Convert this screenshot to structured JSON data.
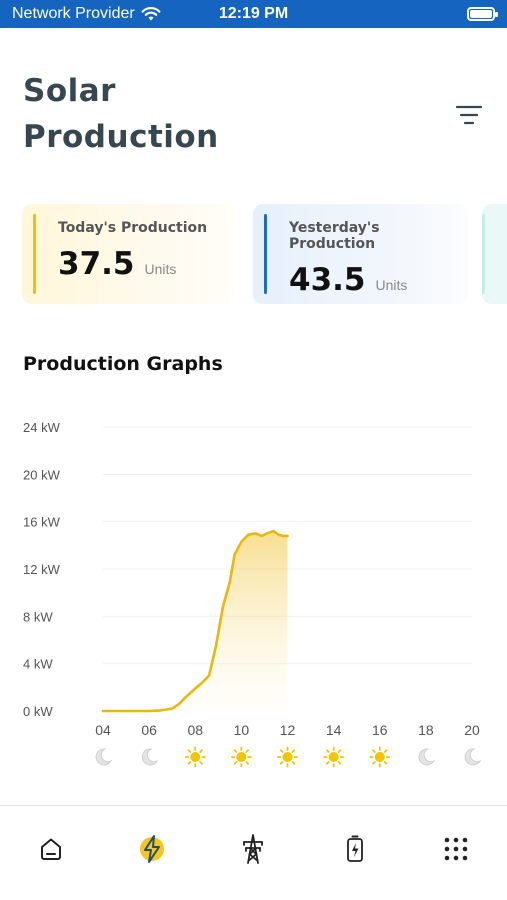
{
  "status_bar": {
    "carrier": "Network Provider",
    "time": "12:19 PM"
  },
  "header": {
    "title": "Solar Production"
  },
  "cards": [
    {
      "label": "Today's Production",
      "value": "37.5",
      "unit": "Units",
      "accent": "#f2c000"
    },
    {
      "label": "Yesterday's Production",
      "value": "43.5",
      "unit": "Units",
      "accent": "#1e6fb8"
    }
  ],
  "section": {
    "title": "Production Graphs"
  },
  "chart_data": {
    "type": "area",
    "y_tick_labels": [
      "0 kW",
      "4 kW",
      "8 kW",
      "12 kW",
      "16 kW",
      "20 kW",
      "24 kW"
    ],
    "x_tick_labels": [
      "04",
      "06",
      "08",
      "10",
      "12",
      "14",
      "16",
      "18",
      "20"
    ],
    "xlim": [
      4,
      20
    ],
    "ylim": [
      0,
      24
    ],
    "grid": true,
    "color": "#e8b80c",
    "x": [
      4,
      5,
      6,
      6.5,
      7,
      7.3,
      7.6,
      8,
      8.3,
      8.6,
      8.9,
      9.2,
      9.5,
      9.7,
      10,
      10.3,
      10.6,
      10.9,
      11.1,
      11.4,
      11.6,
      11.8,
      12
    ],
    "y": [
      0,
      0,
      0,
      0.05,
      0.2,
      0.6,
      1.2,
      1.9,
      2.4,
      3.0,
      5.5,
      8.8,
      10.9,
      13.2,
      14.3,
      14.9,
      15.0,
      14.8,
      15.0,
      15.2,
      14.9,
      14.8,
      14.8
    ],
    "condition_icons": [
      "moon",
      "moon",
      "sun",
      "sun",
      "sun",
      "sun",
      "sun",
      "moon",
      "moon"
    ]
  },
  "nav": [
    {
      "icon": "home-icon",
      "active": false
    },
    {
      "icon": "lightning-icon",
      "active": true
    },
    {
      "icon": "power-tower-icon",
      "active": false
    },
    {
      "icon": "battery-charging-icon",
      "active": false
    },
    {
      "icon": "grid-menu-icon",
      "active": false
    }
  ]
}
